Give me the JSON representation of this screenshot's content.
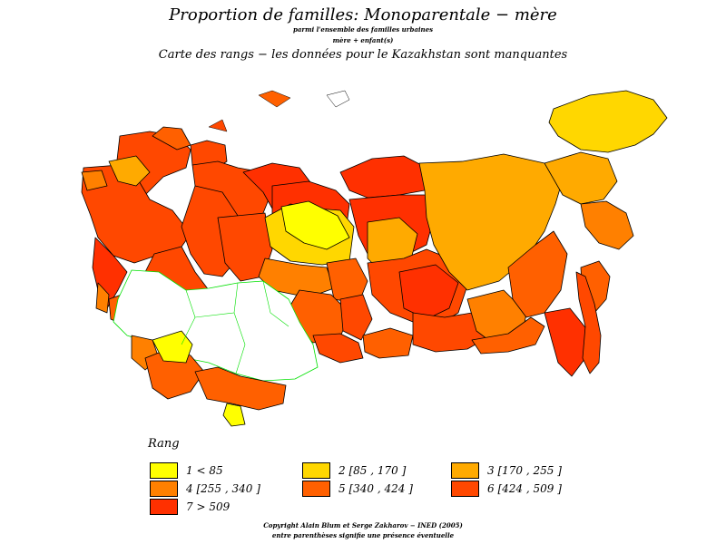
{
  "header": {
    "title": "Proportion  de  familles:  Monoparentale  −  mère",
    "subtitle_1": "parmi  l'ensemble  des  familles  urbaines",
    "subtitle_2": "mère  +  enfant(s)",
    "subtitle_3": "Carte  des   rangs  −  les  données  pour  le  Kazakhstan  sont  manquantes"
  },
  "legend": {
    "title": "Rang",
    "items": [
      {
        "label": "1  <  85",
        "color": "#ffff00"
      },
      {
        "label": "2  [85  ,  170  ]",
        "color": "#ffd700"
      },
      {
        "label": "3  [170  ,  255  ]",
        "color": "#ffaa00"
      },
      {
        "label": "4  [255  ,  340  ]",
        "color": "#ff8000"
      },
      {
        "label": "5  [340  ,  424  ]",
        "color": "#ff6000"
      },
      {
        "label": "6  [424  ,  509  ]",
        "color": "#ff4800"
      },
      {
        "label": "7  >  509",
        "color": "#ff3000"
      }
    ]
  },
  "footer": {
    "copyright": "Copyright  Alain  Blum  et  Serge  Zakharov  −  INED  (2005)",
    "note": "entre  parenthèses  signifie  une  présence  éventuelle"
  },
  "map_style": {
    "border_color": "#000000",
    "kazakhstan_border_color": "#00e000",
    "missing_fill": "#ffffff"
  }
}
